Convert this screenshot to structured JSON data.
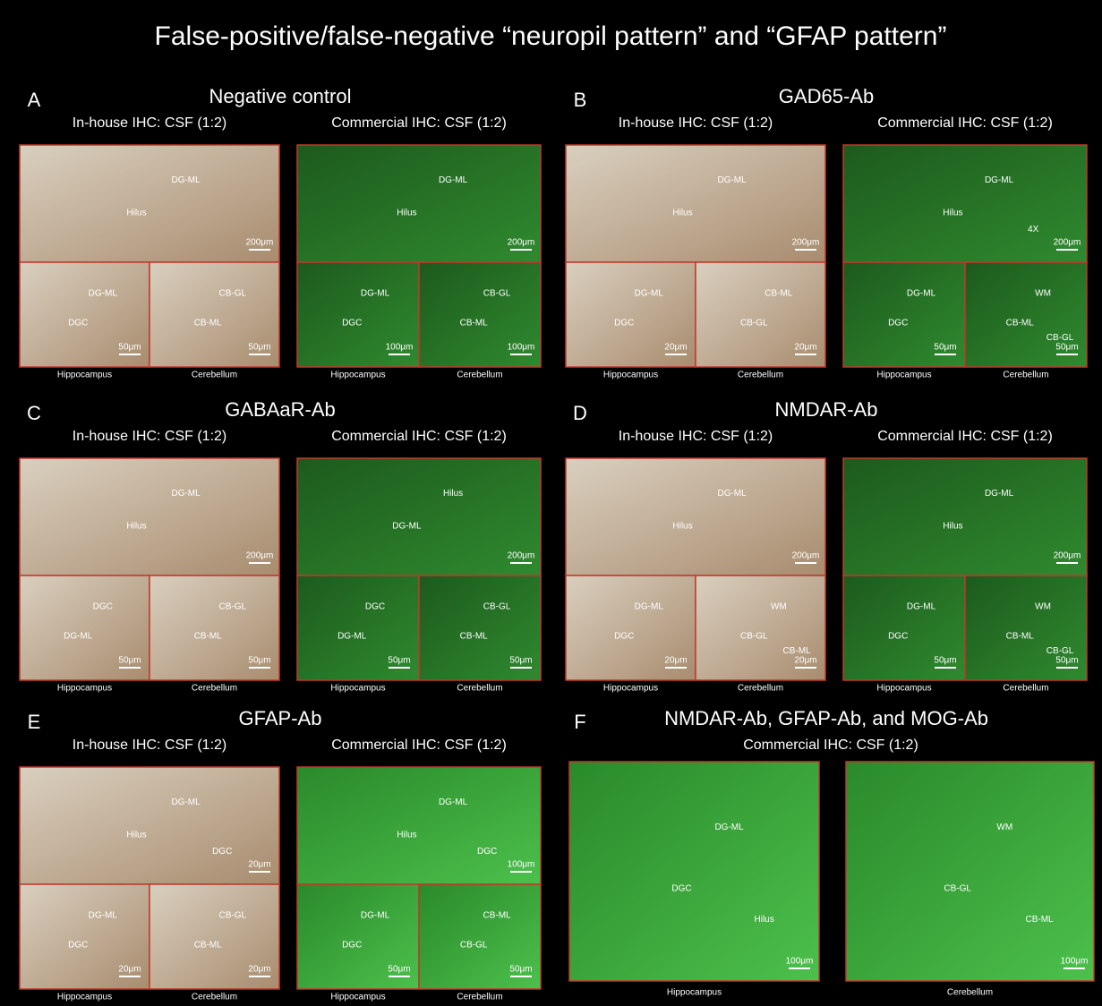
{
  "title": "False-positive/false-negative “neuropil pattern” and “GFAP pattern”",
  "panels": [
    {
      "letter": "A",
      "title": "Negative control",
      "left": {
        "subtitle": "In-house IHC: CSF (1:2)",
        "top": {
          "labels": [
            "DG-ML",
            "Hilus"
          ],
          "scale": "200μm"
        },
        "bottom": [
          {
            "labels": [
              "DG-ML",
              "DGC"
            ],
            "scale": "50μm"
          },
          {
            "labels": [
              "CB-GL",
              "CB-ML"
            ],
            "scale": "50μm"
          }
        ],
        "captions": [
          "Hippocampus",
          "Cerebellum"
        ]
      },
      "right": {
        "subtitle": "Commercial IHC: CSF (1:2)",
        "top": {
          "labels": [
            "DG-ML",
            "Hilus"
          ],
          "scale": "200μm"
        },
        "bottom": [
          {
            "labels": [
              "DG-ML",
              "DGC"
            ],
            "scale": "100μm"
          },
          {
            "labels": [
              "CB-GL",
              "CB-ML"
            ],
            "scale": "100μm"
          }
        ],
        "captions": [
          "Hippocampus",
          "Cerebellum"
        ]
      }
    },
    {
      "letter": "B",
      "title": "GAD65-Ab",
      "left": {
        "subtitle": "In-house IHC: CSF (1:2)",
        "top": {
          "labels": [
            "DG-ML",
            "Hilus"
          ],
          "scale": "200μm"
        },
        "bottom": [
          {
            "labels": [
              "DG-ML",
              "DGC"
            ],
            "scale": "20μm"
          },
          {
            "labels": [
              "CB-ML",
              "CB-GL"
            ],
            "scale": "20μm"
          }
        ],
        "captions": [
          "Hippocampus",
          "Cerebellum"
        ]
      },
      "right": {
        "subtitle": "Commercial IHC: CSF (1:2)",
        "top": {
          "labels": [
            "DG-ML",
            "Hilus",
            "4X"
          ],
          "scale": "200μm"
        },
        "bottom": [
          {
            "labels": [
              "DG-ML",
              "DGC"
            ],
            "scale": "50μm"
          },
          {
            "labels": [
              "WM",
              "CB-ML",
              "CB-GL"
            ],
            "scale": "50μm"
          }
        ],
        "captions": [
          "Hippocampus",
          "Cerebellum"
        ]
      }
    },
    {
      "letter": "C",
      "title": "GABAaR-Ab",
      "left": {
        "subtitle": "In-house IHC: CSF (1:2)",
        "top": {
          "labels": [
            "DG-ML",
            "Hilus"
          ],
          "scale": "200μm"
        },
        "bottom": [
          {
            "labels": [
              "DGC",
              "DG-ML"
            ],
            "scale": "50μm"
          },
          {
            "labels": [
              "CB-GL",
              "CB-ML"
            ],
            "scale": "50μm"
          }
        ],
        "captions": [
          "Hippocampus",
          "Cerebellum"
        ]
      },
      "right": {
        "subtitle": "Commercial IHC: CSF (1:2)",
        "top": {
          "labels": [
            "Hilus",
            "DG-ML"
          ],
          "scale": "200μm"
        },
        "bottom": [
          {
            "labels": [
              "DGC",
              "DG-ML"
            ],
            "scale": "50μm"
          },
          {
            "labels": [
              "CB-GL",
              "CB-ML"
            ],
            "scale": "50μm"
          }
        ],
        "captions": [
          "Hippocampus",
          "Cerebellum"
        ]
      }
    },
    {
      "letter": "D",
      "title": "NMDAR-Ab",
      "left": {
        "subtitle": "In-house IHC: CSF (1:2)",
        "top": {
          "labels": [
            "DG-ML",
            "Hilus"
          ],
          "scale": "200μm"
        },
        "bottom": [
          {
            "labels": [
              "DG-ML",
              "DGC"
            ],
            "scale": "20μm"
          },
          {
            "labels": [
              "WM",
              "CB-GL",
              "CB-ML"
            ],
            "scale": "20μm"
          }
        ],
        "captions": [
          "Hippocampus",
          "Cerebellum"
        ]
      },
      "right": {
        "subtitle": "Commercial IHC: CSF (1:2)",
        "top": {
          "labels": [
            "DG-ML",
            "Hilus"
          ],
          "scale": "200μm"
        },
        "bottom": [
          {
            "labels": [
              "DG-ML",
              "DGC"
            ],
            "scale": "50μm"
          },
          {
            "labels": [
              "WM",
              "CB-ML",
              "CB-GL"
            ],
            "scale": "50μm"
          }
        ],
        "captions": [
          "Hippocampus",
          "Cerebellum"
        ]
      }
    },
    {
      "letter": "E",
      "title": "GFAP-Ab",
      "left": {
        "subtitle": "In-house IHC: CSF (1:2)",
        "top": {
          "labels": [
            "DG-ML",
            "Hilus",
            "DGC"
          ],
          "scale": "20μm"
        },
        "bottom": [
          {
            "labels": [
              "DG-ML",
              "DGC"
            ],
            "scale": "20μm"
          },
          {
            "labels": [
              "CB-GL",
              "CB-ML"
            ],
            "scale": "20μm"
          }
        ],
        "captions": [
          "Hippocampus",
          "Cerebellum"
        ]
      },
      "right": {
        "subtitle": "Commercial IHC: CSF (1:2)",
        "top": {
          "labels": [
            "DG-ML",
            "Hilus",
            "DGC"
          ],
          "scale": "100μm"
        },
        "bottom": [
          {
            "labels": [
              "DG-ML",
              "DGC"
            ],
            "scale": "50μm"
          },
          {
            "labels": [
              "CB-ML",
              "CB-GL"
            ],
            "scale": "50μm"
          }
        ],
        "captions": [
          "Hippocampus",
          "Cerebellum"
        ]
      }
    },
    {
      "letter": "F",
      "title": "NMDAR-Ab, GFAP-Ab, and MOG-Ab",
      "subtitle": "Commercial IHC: CSF (1:2)",
      "images": [
        {
          "labels": [
            "DG-ML",
            "DGC",
            "Hilus"
          ],
          "scale": "100μm",
          "caption": "Hippocampus"
        },
        {
          "labels": [
            "WM",
            "CB-GL",
            "CB-ML"
          ],
          "scale": "100μm",
          "caption": "Cerebellum"
        }
      ]
    }
  ]
}
